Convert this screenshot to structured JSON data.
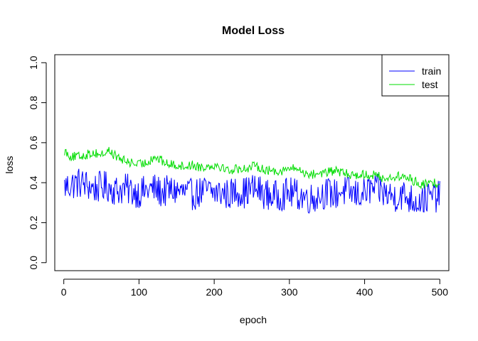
{
  "chart_data": {
    "type": "line",
    "title": "Model Loss",
    "xlabel": "epoch",
    "ylabel": "loss",
    "xlim": [
      0,
      500
    ],
    "ylim": [
      0,
      1
    ],
    "x_ticks": [
      "0",
      "100",
      "200",
      "300",
      "400",
      "500"
    ],
    "y_ticks": [
      "0.0",
      "0.2",
      "0.4",
      "0.6",
      "0.8",
      "1.0"
    ],
    "grid": false,
    "legend_position": "top-right",
    "series": [
      {
        "name": "train",
        "color": "#0000ff",
        "x": [
          1,
          10,
          20,
          30,
          40,
          50,
          60,
          70,
          80,
          90,
          100,
          110,
          120,
          130,
          140,
          150,
          160,
          170,
          180,
          190,
          200,
          210,
          220,
          230,
          240,
          250,
          260,
          270,
          280,
          290,
          300,
          310,
          320,
          330,
          340,
          350,
          360,
          370,
          380,
          390,
          400,
          410,
          420,
          430,
          440,
          450,
          460,
          470,
          480,
          490,
          500
        ],
        "y": [
          0.38,
          0.39,
          0.4,
          0.39,
          0.37,
          0.38,
          0.38,
          0.36,
          0.37,
          0.36,
          0.35,
          0.36,
          0.37,
          0.35,
          0.36,
          0.36,
          0.35,
          0.34,
          0.35,
          0.36,
          0.35,
          0.35,
          0.34,
          0.36,
          0.35,
          0.37,
          0.36,
          0.34,
          0.33,
          0.34,
          0.35,
          0.34,
          0.33,
          0.32,
          0.34,
          0.35,
          0.34,
          0.36,
          0.35,
          0.34,
          0.35,
          0.37,
          0.36,
          0.34,
          0.33,
          0.34,
          0.32,
          0.31,
          0.32,
          0.33,
          0.33
        ],
        "noise": 0.05
      },
      {
        "name": "test",
        "color": "#00dd00",
        "x": [
          1,
          10,
          20,
          30,
          40,
          50,
          60,
          70,
          80,
          90,
          100,
          110,
          120,
          130,
          140,
          150,
          160,
          170,
          180,
          190,
          200,
          210,
          220,
          230,
          240,
          250,
          260,
          270,
          280,
          290,
          300,
          310,
          320,
          330,
          340,
          350,
          360,
          370,
          380,
          390,
          400,
          410,
          420,
          430,
          440,
          450,
          460,
          470,
          480,
          490,
          500
        ],
        "y": [
          0.56,
          0.53,
          0.53,
          0.54,
          0.55,
          0.54,
          0.56,
          0.53,
          0.51,
          0.5,
          0.49,
          0.5,
          0.53,
          0.51,
          0.49,
          0.49,
          0.48,
          0.49,
          0.48,
          0.48,
          0.49,
          0.48,
          0.46,
          0.47,
          0.47,
          0.48,
          0.48,
          0.46,
          0.46,
          0.46,
          0.47,
          0.47,
          0.45,
          0.44,
          0.45,
          0.45,
          0.46,
          0.45,
          0.44,
          0.44,
          0.44,
          0.44,
          0.43,
          0.42,
          0.43,
          0.43,
          0.42,
          0.4,
          0.39,
          0.4,
          0.4
        ],
        "noise": 0.015
      }
    ]
  }
}
